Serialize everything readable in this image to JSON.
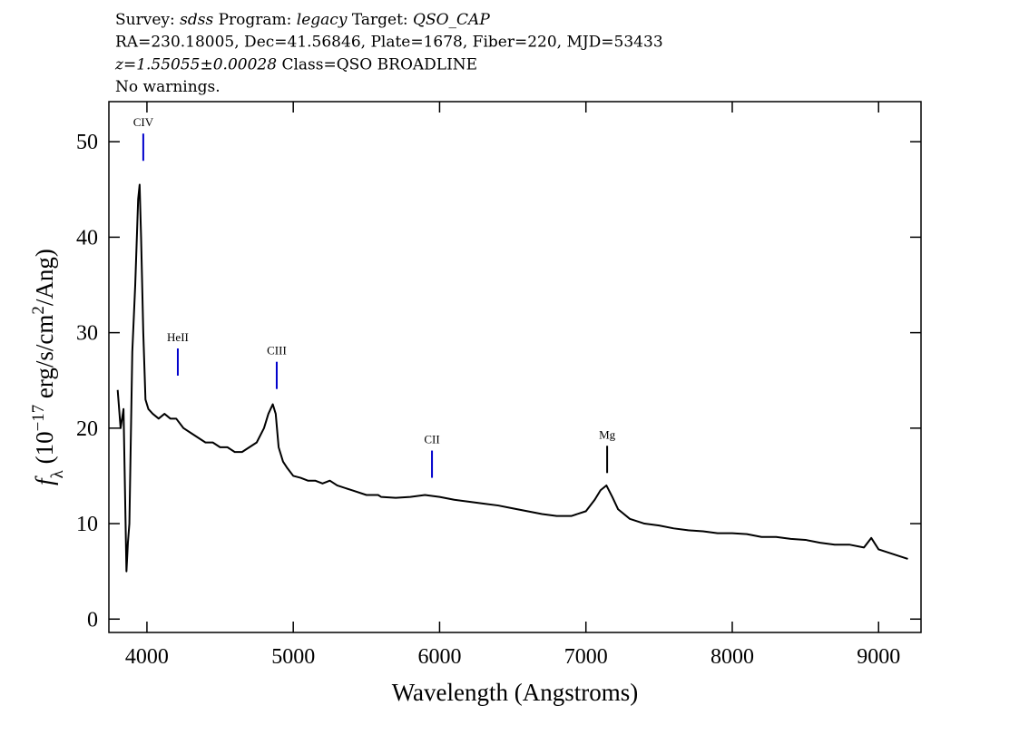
{
  "chart_data": {
    "type": "line",
    "header": [
      [
        {
          "text": "Survey: "
        },
        {
          "text": "sdss",
          "italic": true
        },
        {
          "text": " Program: "
        },
        {
          "text": "legacy",
          "italic": true
        },
        {
          "text": " Target: "
        },
        {
          "text": "QSO_CAP",
          "italic": true
        }
      ],
      [
        {
          "text": "RA=230.18005, Dec=41.56846, Plate=1678, Fiber=220, MJD=53433"
        }
      ],
      [
        {
          "text": "z=1.55055±0.00028",
          "italic": true
        },
        {
          "text": " Class=QSO BROADLINE"
        }
      ],
      [
        {
          "text": "No warnings."
        }
      ]
    ],
    "xlabel": "Wavelength (Angstroms)",
    "ylabel": [
      {
        "text": "f",
        "italic": true
      },
      {
        "text": "λ",
        "sub": true
      },
      {
        "text": " (10"
      },
      {
        "text": "−17",
        "sup": true
      },
      {
        "text": " erg/s/cm"
      },
      {
        "text": "2",
        "sup": true
      },
      {
        "text": "/Ang)"
      }
    ],
    "xlim": [
      3740,
      9290
    ],
    "ylim": [
      -1.4,
      54.2
    ],
    "xticks": [
      4000,
      5000,
      6000,
      7000,
      8000,
      9000
    ],
    "yticks": [
      0,
      10,
      20,
      30,
      40,
      50
    ],
    "x": [
      3800,
      3820,
      3840,
      3860,
      3870,
      3880,
      3900,
      3920,
      3940,
      3950,
      3960,
      3975,
      3990,
      4010,
      4040,
      4080,
      4120,
      4160,
      4200,
      4250,
      4300,
      4350,
      4400,
      4450,
      4500,
      4550,
      4600,
      4650,
      4700,
      4750,
      4800,
      4830,
      4860,
      4880,
      4900,
      4930,
      4960,
      5000,
      5050,
      5100,
      5150,
      5200,
      5250,
      5300,
      5400,
      5500,
      5580,
      5600,
      5700,
      5800,
      5900,
      6000,
      6100,
      6200,
      6300,
      6400,
      6500,
      6600,
      6700,
      6800,
      6900,
      7000,
      7060,
      7100,
      7140,
      7180,
      7220,
      7300,
      7400,
      7500,
      7600,
      7700,
      7800,
      7900,
      8000,
      8100,
      8200,
      8300,
      8400,
      8500,
      8600,
      8700,
      8800,
      8900,
      8950,
      9000,
      9100,
      9200
    ],
    "series": [
      {
        "color": "#000000",
        "values": [
          24,
          20,
          22,
          5,
          8,
          10,
          28,
          35,
          44,
          45.5,
          40,
          30,
          23,
          22,
          21.5,
          21,
          21.5,
          21,
          21,
          20,
          19.5,
          19,
          18.5,
          18.5,
          18,
          18,
          17.5,
          17.5,
          18,
          18.5,
          20,
          21.5,
          22.5,
          21.5,
          18,
          16.5,
          15.8,
          15,
          14.8,
          14.5,
          14.5,
          14.2,
          14.5,
          14,
          13.5,
          13,
          13,
          12.8,
          12.7,
          12.8,
          13,
          12.8,
          12.5,
          12.3,
          12.1,
          11.9,
          11.6,
          11.3,
          11,
          10.8,
          10.8,
          11.3,
          12.5,
          13.5,
          14,
          12.8,
          11.5,
          10.5,
          10,
          9.8,
          9.5,
          9.3,
          9.2,
          9,
          9,
          8.9,
          8.6,
          8.6,
          8.4,
          8.3,
          8,
          7.8,
          7.8,
          7.5,
          8.5,
          7.3,
          6.8,
          6.3
        ]
      }
    ],
    "annotations": [
      {
        "label": "CIV",
        "x": 3975,
        "y": 48.0,
        "color": "#0000cc"
      },
      {
        "label": "HeII",
        "x": 4211,
        "y": 25.5,
        "color": "#0000cc"
      },
      {
        "label": "CIII",
        "x": 4887,
        "y": 24.1,
        "color": "#0000cc"
      },
      {
        "label": "CII",
        "x": 5948,
        "y": 14.8,
        "color": "#0000cc"
      },
      {
        "label": "Mg",
        "x": 7145,
        "y": 15.3,
        "color": "#000000"
      }
    ]
  }
}
